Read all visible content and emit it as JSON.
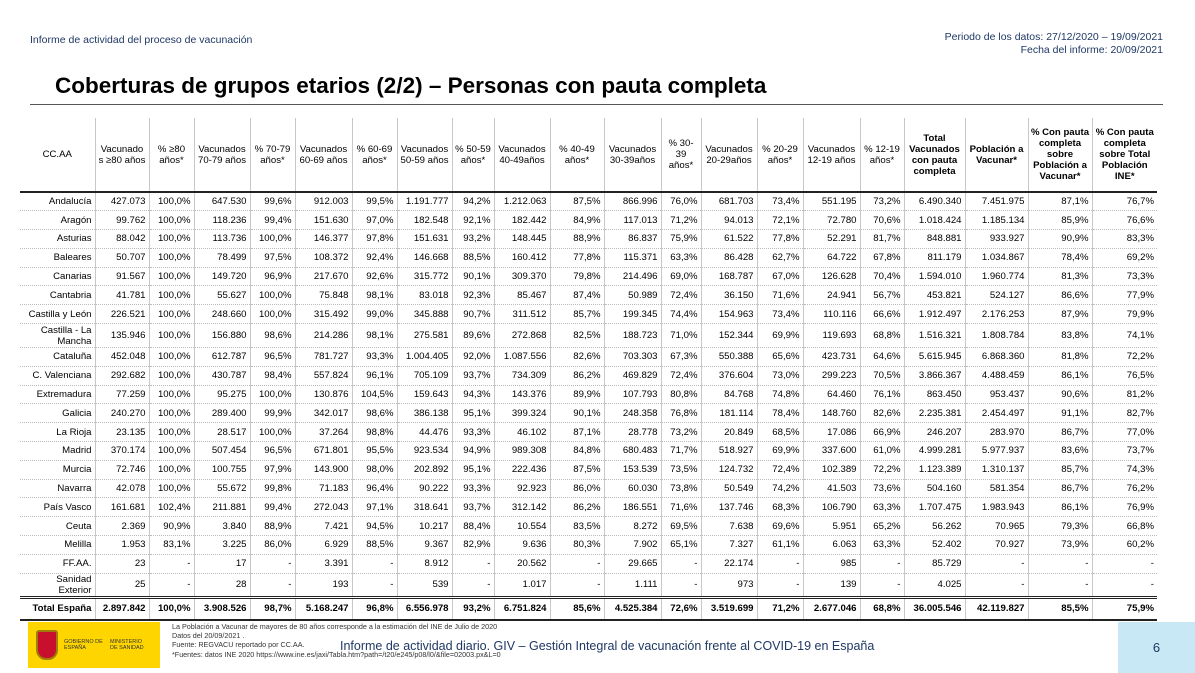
{
  "header": {
    "report_name": "Informe de actividad del proceso de vacunación",
    "period": "Periodo de los datos: 27/12/2020 – 19/09/2021",
    "report_date": "Fecha del informe: 20/09/2021"
  },
  "title": "Coberturas de grupos etarios (2/2) – Personas con pauta completa",
  "columns": [
    "CC.AA",
    "Vacunado s ≥80 años",
    "% ≥80 años*",
    "Vacunados 70-79 años",
    "% 70-79 años*",
    "Vacunados 60-69 años",
    "% 60-69 años*",
    "Vacunados 50-59 años",
    "% 50-59 años*",
    "Vacunados 40-49años",
    "% 40-49 años*",
    "Vacunados 30-39años",
    "% 30-39 años*",
    "Vacunados 20-29años",
    "% 20-29 años*",
    "Vacunados 12-19 años",
    "% 12-19 años*",
    "Total Vacunados con pauta completa",
    "Población a Vacunar*",
    "% Con pauta completa sobre Población a Vacunar*",
    "% Con pauta completa sobre Total Población INE*"
  ],
  "rows": [
    [
      "Andalucía",
      "427.073",
      "100,0%",
      "647.530",
      "99,6%",
      "912.003",
      "99,5%",
      "1.191.777",
      "94,2%",
      "1.212.063",
      "87,5%",
      "866.996",
      "76,0%",
      "681.703",
      "73,4%",
      "551.195",
      "73,2%",
      "6.490.340",
      "7.451.975",
      "87,1%",
      "76,7%"
    ],
    [
      "Aragón",
      "99.762",
      "100,0%",
      "118.236",
      "99,4%",
      "151.630",
      "97,0%",
      "182.548",
      "92,1%",
      "182.442",
      "84,9%",
      "117.013",
      "71,2%",
      "94.013",
      "72,1%",
      "72.780",
      "70,6%",
      "1.018.424",
      "1.185.134",
      "85,9%",
      "76,6%"
    ],
    [
      "Asturias",
      "88.042",
      "100,0%",
      "113.736",
      "100,0%",
      "146.377",
      "97,8%",
      "151.631",
      "93,2%",
      "148.445",
      "88,9%",
      "86.837",
      "75,9%",
      "61.522",
      "77,8%",
      "52.291",
      "81,7%",
      "848.881",
      "933.927",
      "90,9%",
      "83,3%"
    ],
    [
      "Baleares",
      "50.707",
      "100,0%",
      "78.499",
      "97,5%",
      "108.372",
      "92,4%",
      "146.668",
      "88,5%",
      "160.412",
      "77,8%",
      "115.371",
      "63,3%",
      "86.428",
      "62,7%",
      "64.722",
      "67,8%",
      "811.179",
      "1.034.867",
      "78,4%",
      "69,2%"
    ],
    [
      "Canarias",
      "91.567",
      "100,0%",
      "149.720",
      "96,9%",
      "217.670",
      "92,6%",
      "315.772",
      "90,1%",
      "309.370",
      "79,8%",
      "214.496",
      "69,0%",
      "168.787",
      "67,0%",
      "126.628",
      "70,4%",
      "1.594.010",
      "1.960.774",
      "81,3%",
      "73,3%"
    ],
    [
      "Cantabria",
      "41.781",
      "100,0%",
      "55.627",
      "100,0%",
      "75.848",
      "98,1%",
      "83.018",
      "92,3%",
      "85.467",
      "87,4%",
      "50.989",
      "72,4%",
      "36.150",
      "71,6%",
      "24.941",
      "56,7%",
      "453.821",
      "524.127",
      "86,6%",
      "77,9%"
    ],
    [
      "Castilla y León",
      "226.521",
      "100,0%",
      "248.660",
      "100,0%",
      "315.492",
      "99,0%",
      "345.888",
      "90,7%",
      "311.512",
      "85,7%",
      "199.345",
      "74,4%",
      "154.963",
      "73,4%",
      "110.116",
      "66,6%",
      "1.912.497",
      "2.176.253",
      "87,9%",
      "79,9%"
    ],
    [
      "Castilla - La Mancha",
      "135.946",
      "100,0%",
      "156.880",
      "98,6%",
      "214.286",
      "98,1%",
      "275.581",
      "89,6%",
      "272.868",
      "82,5%",
      "188.723",
      "71,0%",
      "152.344",
      "69,9%",
      "119.693",
      "68,8%",
      "1.516.321",
      "1.808.784",
      "83,8%",
      "74,1%"
    ],
    [
      "Cataluña",
      "452.048",
      "100,0%",
      "612.787",
      "96,5%",
      "781.727",
      "93,3%",
      "1.004.405",
      "92,0%",
      "1.087.556",
      "82,6%",
      "703.303",
      "67,3%",
      "550.388",
      "65,6%",
      "423.731",
      "64,6%",
      "5.615.945",
      "6.868.360",
      "81,8%",
      "72,2%"
    ],
    [
      "C. Valenciana",
      "292.682",
      "100,0%",
      "430.787",
      "98,4%",
      "557.824",
      "96,1%",
      "705.109",
      "93,7%",
      "734.309",
      "86,2%",
      "469.829",
      "72,4%",
      "376.604",
      "73,0%",
      "299.223",
      "70,5%",
      "3.866.367",
      "4.488.459",
      "86,1%",
      "76,5%"
    ],
    [
      "Extremadura",
      "77.259",
      "100,0%",
      "95.275",
      "100,0%",
      "130.876",
      "104,5%",
      "159.643",
      "94,3%",
      "143.376",
      "89,9%",
      "107.793",
      "80,8%",
      "84.768",
      "74,8%",
      "64.460",
      "76,1%",
      "863.450",
      "953.437",
      "90,6%",
      "81,2%"
    ],
    [
      "Galicia",
      "240.270",
      "100,0%",
      "289.400",
      "99,9%",
      "342.017",
      "98,6%",
      "386.138",
      "95,1%",
      "399.324",
      "90,1%",
      "248.358",
      "76,8%",
      "181.114",
      "78,4%",
      "148.760",
      "82,6%",
      "2.235.381",
      "2.454.497",
      "91,1%",
      "82,7%"
    ],
    [
      "La Rioja",
      "23.135",
      "100,0%",
      "28.517",
      "100,0%",
      "37.264",
      "98,8%",
      "44.476",
      "93,3%",
      "46.102",
      "87,1%",
      "28.778",
      "73,2%",
      "20.849",
      "68,5%",
      "17.086",
      "66,9%",
      "246.207",
      "283.970",
      "86,7%",
      "77,0%"
    ],
    [
      "Madrid",
      "370.174",
      "100,0%",
      "507.454",
      "96,5%",
      "671.801",
      "95,5%",
      "923.534",
      "94,9%",
      "989.308",
      "84,8%",
      "680.483",
      "71,7%",
      "518.927",
      "69,9%",
      "337.600",
      "61,0%",
      "4.999.281",
      "5.977.937",
      "83,6%",
      "73,7%"
    ],
    [
      "Murcia",
      "72.746",
      "100,0%",
      "100.755",
      "97,9%",
      "143.900",
      "98,0%",
      "202.892",
      "95,1%",
      "222.436",
      "87,5%",
      "153.539",
      "73,5%",
      "124.732",
      "72,4%",
      "102.389",
      "72,2%",
      "1.123.389",
      "1.310.137",
      "85,7%",
      "74,3%"
    ],
    [
      "Navarra",
      "42.078",
      "100,0%",
      "55.672",
      "99,8%",
      "71.183",
      "96,4%",
      "90.222",
      "93,3%",
      "92.923",
      "86,0%",
      "60.030",
      "73,8%",
      "50.549",
      "74,2%",
      "41.503",
      "73,6%",
      "504.160",
      "581.354",
      "86,7%",
      "76,2%"
    ],
    [
      "País Vasco",
      "161.681",
      "102,4%",
      "211.881",
      "99,4%",
      "272.043",
      "97,1%",
      "318.641",
      "93,7%",
      "312.142",
      "86,2%",
      "186.551",
      "71,6%",
      "137.746",
      "68,3%",
      "106.790",
      "63,3%",
      "1.707.475",
      "1.983.943",
      "86,1%",
      "76,9%"
    ],
    [
      "Ceuta",
      "2.369",
      "90,9%",
      "3.840",
      "88,9%",
      "7.421",
      "94,5%",
      "10.217",
      "88,4%",
      "10.554",
      "83,5%",
      "8.272",
      "69,5%",
      "7.638",
      "69,6%",
      "5.951",
      "65,2%",
      "56.262",
      "70.965",
      "79,3%",
      "66,8%"
    ],
    [
      "Melilla",
      "1.953",
      "83,1%",
      "3.225",
      "86,0%",
      "6.929",
      "88,5%",
      "9.367",
      "82,9%",
      "9.636",
      "80,3%",
      "7.902",
      "65,1%",
      "7.327",
      "61,1%",
      "6.063",
      "63,3%",
      "52.402",
      "70.927",
      "73,9%",
      "60,2%"
    ],
    [
      "FF.AA.",
      "23",
      "-",
      "17",
      "-",
      "3.391",
      "-",
      "8.912",
      "-",
      "20.562",
      "-",
      "29.665",
      "-",
      "22.174",
      "-",
      "985",
      "-",
      "85.729",
      "-",
      "-",
      "-"
    ],
    [
      "Sanidad Exterior",
      "25",
      "-",
      "28",
      "-",
      "193",
      "-",
      "539",
      "-",
      "1.017",
      "-",
      "1.111",
      "-",
      "973",
      "-",
      "139",
      "-",
      "4.025",
      "-",
      "-",
      "-"
    ]
  ],
  "total": [
    "Total España",
    "2.897.842",
    "100,0%",
    "3.908.526",
    "98,7%",
    "5.168.247",
    "96,8%",
    "6.556.978",
    "93,2%",
    "6.751.824",
    "85,6%",
    "4.525.384",
    "72,6%",
    "3.519.699",
    "71,2%",
    "2.677.046",
    "68,8%",
    "36.005.546",
    "42.119.827",
    "85,5%",
    "75,9%"
  ],
  "footer": {
    "logo_text_1": "GOBIERNO DE ESPAÑA",
    "logo_text_2": "MINISTERIO DE SANIDAD",
    "notes": [
      "La Población a Vacunar de mayores de 80 años corresponde a la estimación del INE de Julio de 2020",
      "Datos del 20/09/2021 .",
      "Fuente: REGVACU reportado por CC.AA.",
      "*Fuentes: datos INE 2020 https://www.ine.es/jaxi/Tabla.htm?path=/t20/e245/p08/l0/&file=02003.px&L=0"
    ],
    "main": "Informe de actividad diario. GIV – Gestión Integral de vacunación frente al COVID-19 en España",
    "page": "6"
  }
}
